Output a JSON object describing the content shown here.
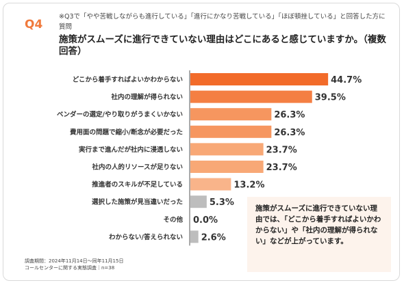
{
  "header": {
    "q_label": "Q4",
    "sub_note": "※Q3で「やや苦戦しながらも進行している」「進行にかなり苦戦している」「ほぼ頓挫している」と回答した方に質問",
    "question": "施策がスムーズに進行できていない理由はどこにあると感じていますか。（複数回答）"
  },
  "chart_data": {
    "type": "bar",
    "orientation": "horizontal",
    "title": "",
    "xlabel": "",
    "ylabel": "",
    "xlim": [
      0,
      50
    ],
    "grid": false,
    "legend": "none",
    "categories": [
      "どこから着手すればよいかわからない",
      "社内の理解が得られない",
      "ベンダーの選定/やり取りがうまくいかない",
      "費用面の問題で縮小/断念が必要だった",
      "実行まで進んだが社内に浸透しない",
      "社内の人的リソースが足りない",
      "推進者のスキルが不足している",
      "選択した施策が見当違いだった",
      "その他",
      "わからない/答えられない"
    ],
    "values": [
      44.7,
      39.5,
      26.3,
      26.3,
      23.7,
      23.7,
      13.2,
      5.3,
      0.0,
      2.6
    ],
    "value_labels": [
      "44.7%",
      "39.5%",
      "26.3%",
      "26.3%",
      "23.7%",
      "23.7%",
      "13.2%",
      "5.3%",
      "0.0%",
      "2.6%"
    ],
    "colors": [
      "#f26b2a",
      "#f47f43",
      "#f6965f",
      "#f6965f",
      "#f8a876",
      "#f8a876",
      "#f9b48a",
      "#bdbdbd",
      "#bdbdbd",
      "#bdbdbd"
    ]
  },
  "note": {
    "text": "施策がスムーズに進行できていない理由では、「どこから着手すればよいかわからない」や「社内の理解が得られない」などが上がっています。"
  },
  "footer": {
    "line1": "調査期間：2024年11月14日〜同年11月15日",
    "line2": "コールセンターに関する実態調査｜n=38"
  }
}
